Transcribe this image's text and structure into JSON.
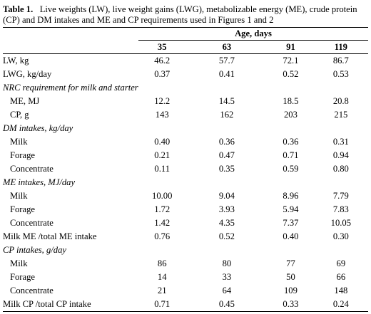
{
  "caption": {
    "label": "Table 1.",
    "text": "Live weights (LW), live weight gains (LWG), metabolizable energy (ME), crude protein (CP) and DM intakes and ME and CP requirements used in Figures 1 and 2"
  },
  "header": {
    "group": "Age, days",
    "days": [
      "35",
      "63",
      "91",
      "119"
    ]
  },
  "rows": [
    {
      "label": "LW, kg",
      "values": [
        "46.2",
        "57.7",
        "72.1",
        "86.7"
      ]
    },
    {
      "label": "LWG, kg/day",
      "values": [
        "0.37",
        "0.41",
        "0.52",
        "0.53"
      ]
    },
    {
      "label": "NRC requirement for milk and starter"
    },
    {
      "label": "ME, MJ",
      "values": [
        "12.2",
        "14.5",
        "18.5",
        "20.8"
      ]
    },
    {
      "label": "CP, g",
      "values": [
        "143",
        "162",
        "203",
        "215"
      ]
    },
    {
      "label": "DM intakes, kg/day"
    },
    {
      "label": "Milk",
      "values": [
        "0.40",
        "0.36",
        "0.36",
        "0.31"
      ]
    },
    {
      "label": "Forage",
      "values": [
        "0.21",
        "0.47",
        "0.71",
        "0.94"
      ]
    },
    {
      "label": "Concentrate",
      "values": [
        "0.11",
        "0.35",
        "0.59",
        "0.80"
      ]
    },
    {
      "label": "ME intakes, MJ/day"
    },
    {
      "label": "Milk",
      "values": [
        "10.00",
        "9.04",
        "8.96",
        "7.79"
      ]
    },
    {
      "label": "Forage",
      "values": [
        "1.72",
        "3.93",
        "5.94",
        "7.83"
      ]
    },
    {
      "label": "Concentrate",
      "values": [
        "1.42",
        "4.35",
        "7.37",
        "10.05"
      ]
    },
    {
      "label": "Milk ME /total ME intake",
      "values": [
        "0.76",
        "0.52",
        "0.40",
        "0.30"
      ]
    },
    {
      "label": "CP intakes, g/day"
    },
    {
      "label": "Milk",
      "values": [
        "86",
        "80",
        "77",
        "69"
      ]
    },
    {
      "label": "Forage",
      "values": [
        "14",
        "33",
        "50",
        "66"
      ]
    },
    {
      "label": "Concentrate",
      "values": [
        "21",
        "64",
        "109",
        "148"
      ]
    },
    {
      "label": "Milk CP /total CP intake",
      "values": [
        "0.71",
        "0.45",
        "0.33",
        "0.24"
      ]
    }
  ]
}
